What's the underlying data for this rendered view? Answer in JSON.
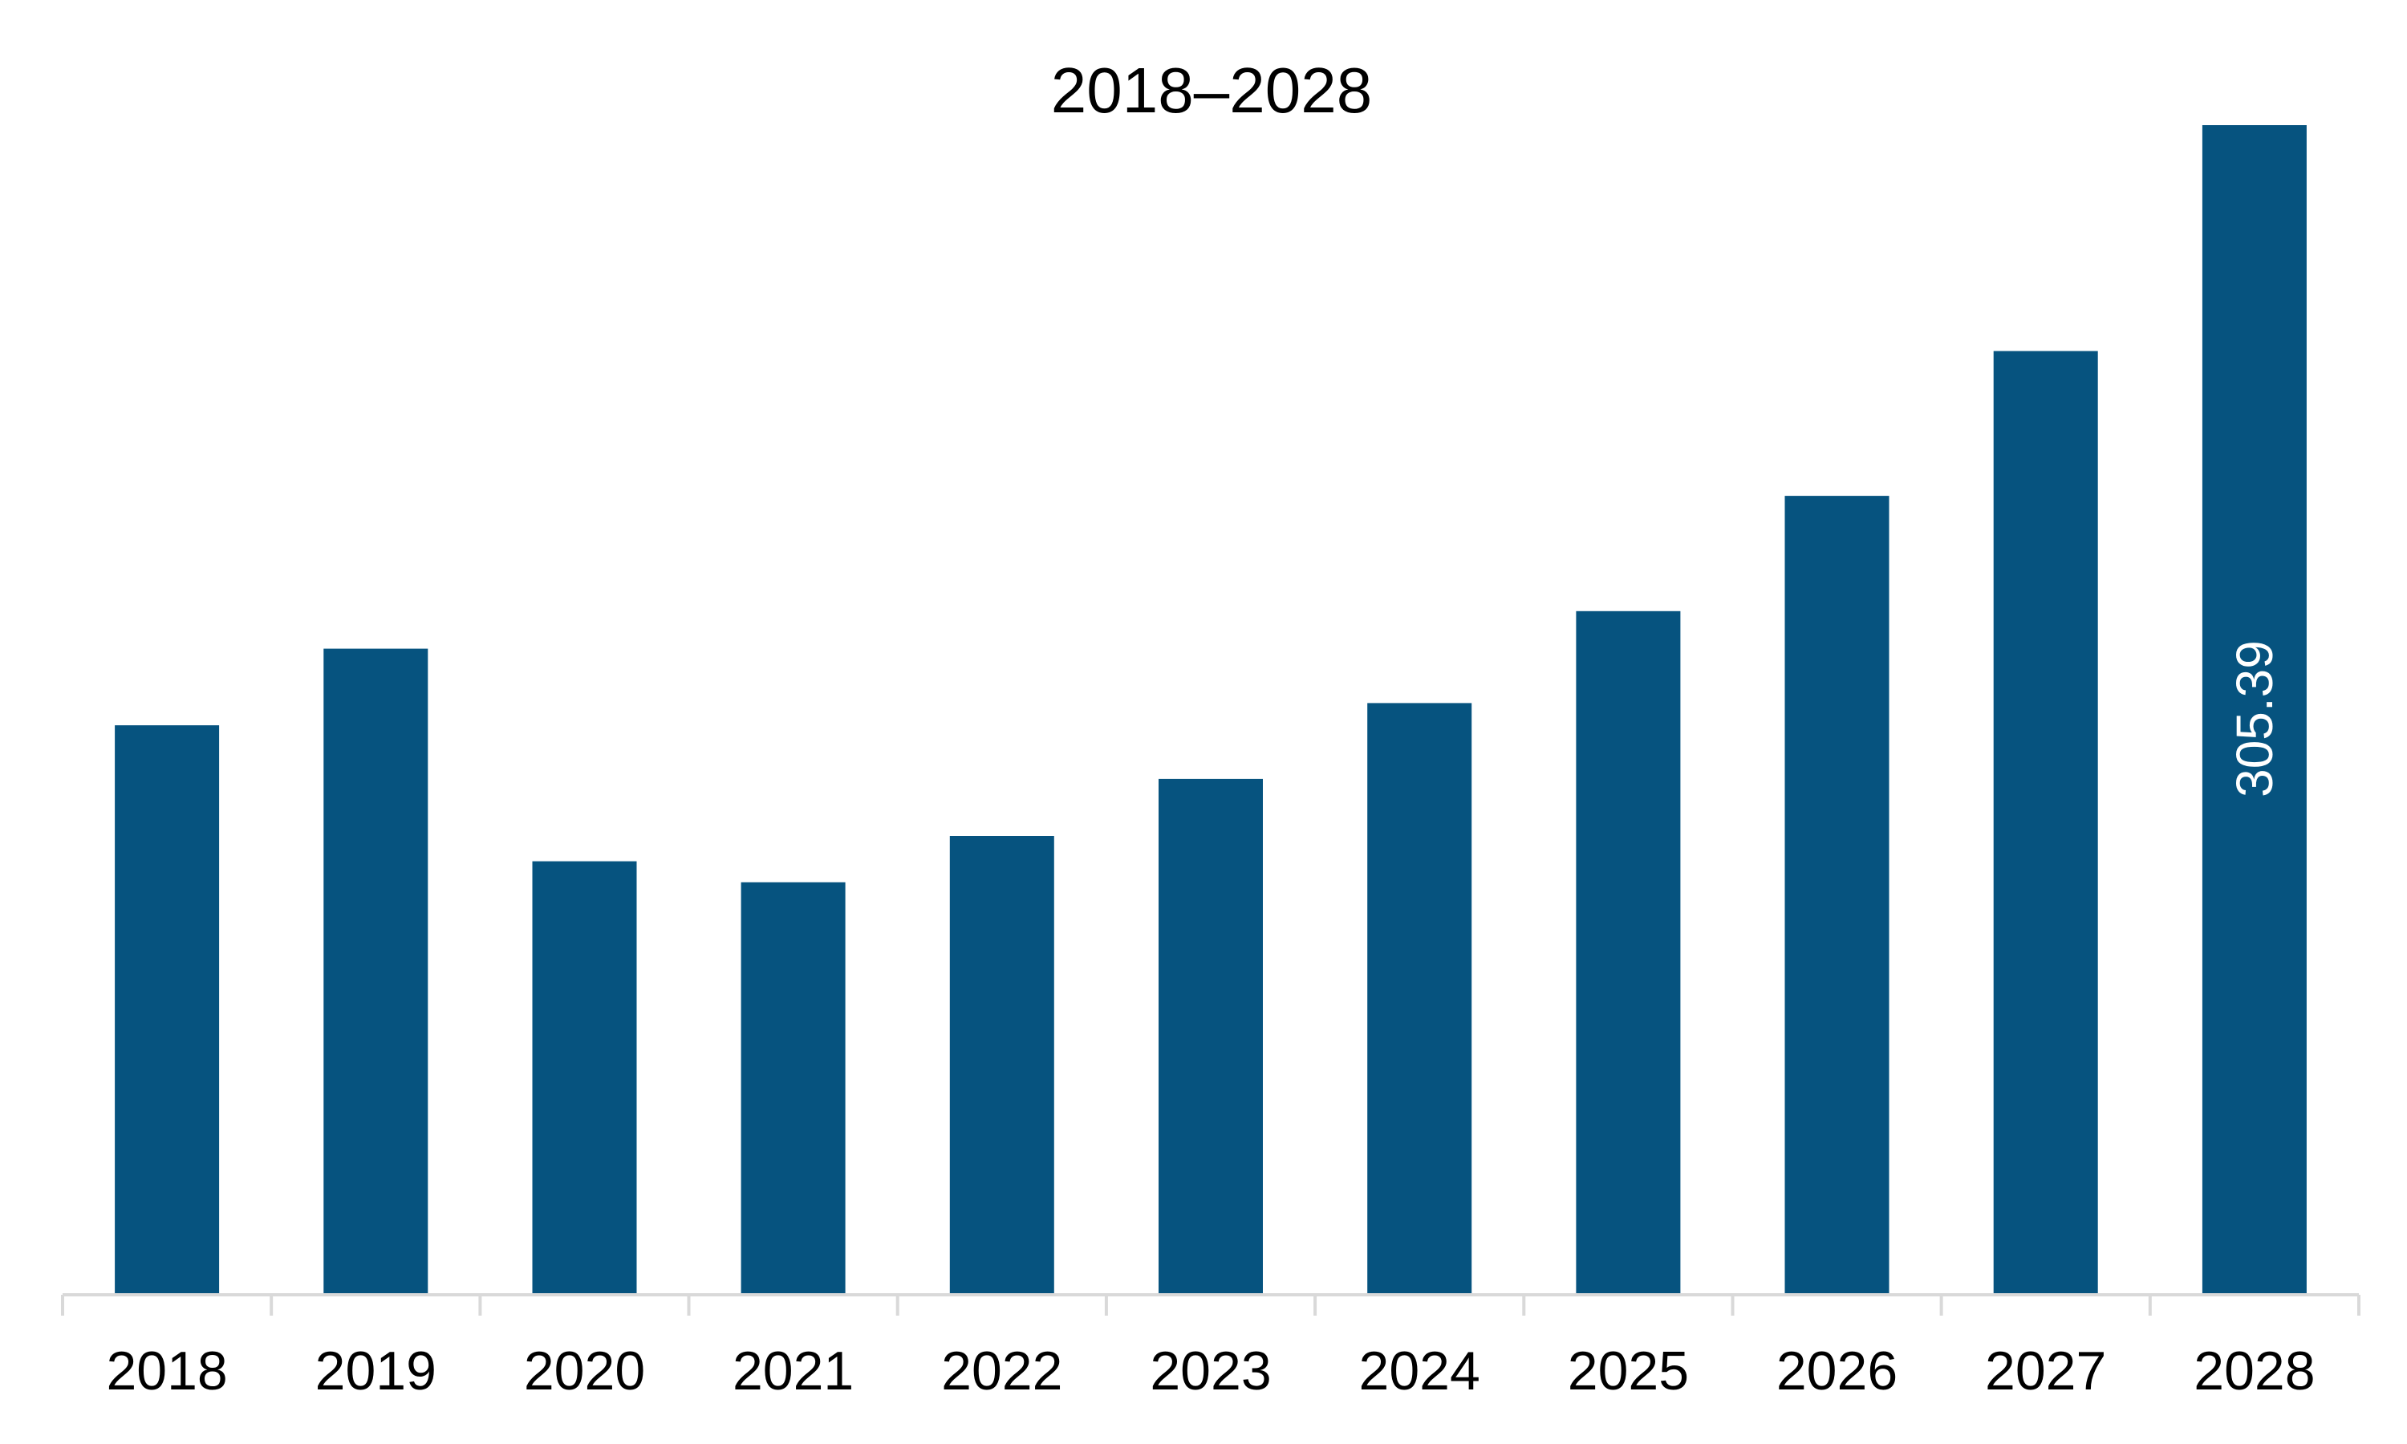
{
  "chart_data": {
    "type": "bar",
    "title": "2018–2028",
    "xlabel": "",
    "ylabel": "",
    "categories": [
      "2018",
      "2019",
      "2020",
      "2021",
      "2022",
      "2023",
      "2024",
      "2025",
      "2026",
      "2027",
      "2028"
    ],
    "values": [
      148.7,
      168.7,
      113.2,
      107.7,
      119.8,
      134.7,
      154.5,
      178.5,
      208.6,
      246.4,
      305.39
    ],
    "data_labels": [
      {
        "category": "2028",
        "text": "305.39"
      }
    ],
    "ylim": [
      0,
      305.39
    ],
    "grid": false,
    "legend": "none",
    "colors": {
      "bar": "#06537f",
      "axis": "#d9d9d9",
      "text": "#000000",
      "data_label": "#ffffff"
    }
  }
}
